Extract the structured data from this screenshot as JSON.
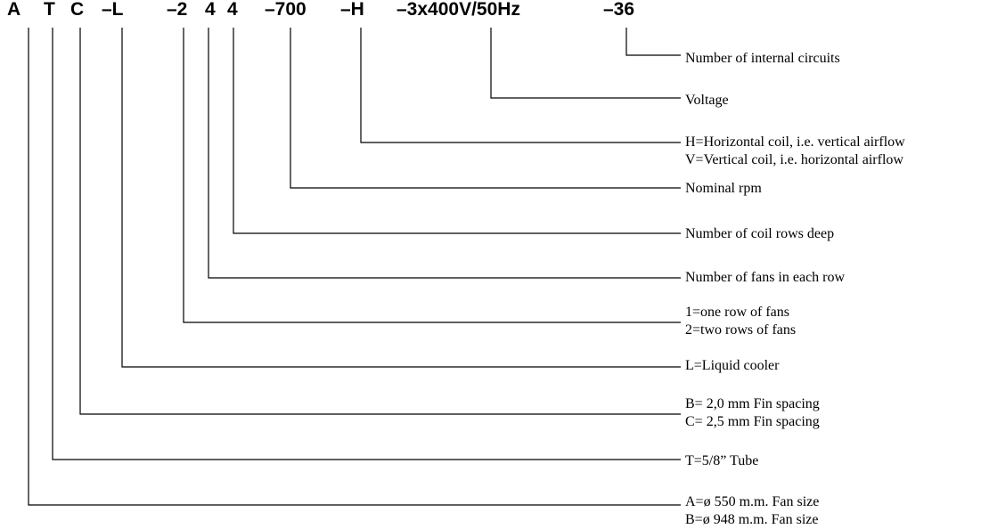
{
  "code": {
    "segments": {
      "A": "A",
      "T": "T",
      "C": "C",
      "L": "–L",
      "rows": "–2",
      "fans": "4",
      "coil": "4",
      "rpm": "–700",
      "orientation": "–H",
      "voltage": "–3x400V/50Hz",
      "circuits": "–36"
    }
  },
  "legend": {
    "circuits": [
      "Number of internal circuits"
    ],
    "voltage": [
      "Voltage"
    ],
    "orientation": [
      "H=Horizontal coil, i.e. vertical airflow",
      "V=Vertical coil, i.e. horizontal airflow"
    ],
    "rpm": [
      "Nominal rpm"
    ],
    "coil": [
      "Number of coil rows deep"
    ],
    "fans": [
      "Number of fans in each row"
    ],
    "rows": [
      "1=one row of fans",
      "2=two rows of fans"
    ],
    "L": [
      "L=Liquid cooler"
    ],
    "C": [
      "B= 2,0 mm Fin spacing",
      "C= 2,5 mm Fin spacing"
    ],
    "T": [
      "T=5/8” Tube"
    ],
    "A": [
      "A=ø 550 m.m. Fan size",
      "B=ø 948 m.m. Fan size"
    ]
  }
}
